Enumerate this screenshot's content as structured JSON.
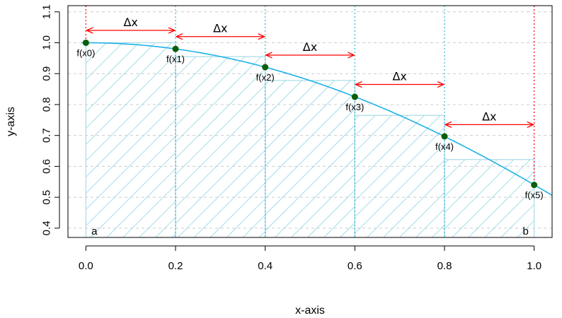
{
  "chart_data": {
    "type": "line",
    "title": "",
    "xlabel": "x-axis",
    "ylabel": "y-axis",
    "xlim": [
      -0.04,
      1.04
    ],
    "ylim": [
      0.37,
      1.12
    ],
    "x_ticks": [
      0.0,
      0.2,
      0.4,
      0.6,
      0.8,
      1.0
    ],
    "x_tick_labels": [
      "0.0",
      "0.2",
      "0.4",
      "0.6",
      "0.8",
      "1.0"
    ],
    "y_ticks": [
      0.4,
      0.5,
      0.6,
      0.7,
      0.8,
      0.9,
      1.0,
      1.1
    ],
    "y_tick_labels": [
      "0.4",
      "0.5",
      "0.6",
      "0.7",
      "0.8",
      "0.9",
      "1.0",
      "1.1"
    ],
    "grid": "horizontal dashed",
    "curve_color": "#1fb2e6",
    "point_color": "#0b5e0b",
    "hatch_color": "#a8dce9",
    "arrow_color": "#ff0000",
    "bound_line_color": "#ff0000",
    "partition_line_color": "#35b3dc",
    "curve": {
      "x": [
        0.0,
        0.1,
        0.2,
        0.3,
        0.4,
        0.5,
        0.6,
        0.7,
        0.8,
        0.9,
        1.0,
        1.04
      ],
      "y": [
        1.0,
        0.995,
        0.98,
        0.955,
        0.921,
        0.878,
        0.825,
        0.765,
        0.697,
        0.622,
        0.54,
        0.506
      ]
    },
    "points": [
      {
        "label": "f(x0)",
        "x": 0.0,
        "y": 1.0
      },
      {
        "label": "f(x1)",
        "x": 0.2,
        "y": 0.98
      },
      {
        "label": "f(x2)",
        "x": 0.4,
        "y": 0.921
      },
      {
        "label": "f(x3)",
        "x": 0.6,
        "y": 0.825
      },
      {
        "label": "f(x4)",
        "x": 0.8,
        "y": 0.697
      },
      {
        "label": "f(x5)",
        "x": 1.0,
        "y": 0.54
      }
    ],
    "rectangles": [
      {
        "x0": 0.0,
        "x1": 0.2,
        "height": 1.0
      },
      {
        "x0": 0.2,
        "x1": 0.4,
        "height": 0.955
      },
      {
        "x0": 0.4,
        "x1": 0.6,
        "height": 0.878
      },
      {
        "x0": 0.6,
        "x1": 0.8,
        "height": 0.765
      },
      {
        "x0": 0.8,
        "x1": 1.0,
        "height": 0.622
      }
    ],
    "intervals": [
      {
        "label": "Δx",
        "x0": 0.0,
        "x1": 0.2,
        "y": 1.04
      },
      {
        "label": "Δx",
        "x0": 0.2,
        "x1": 0.4,
        "y": 1.02
      },
      {
        "label": "Δx",
        "x0": 0.4,
        "x1": 0.6,
        "y": 0.96
      },
      {
        "label": "Δx",
        "x0": 0.6,
        "x1": 0.8,
        "y": 0.865
      },
      {
        "label": "Δx",
        "x0": 0.8,
        "x1": 1.0,
        "y": 0.735
      }
    ],
    "bound_labels": [
      {
        "label": "a",
        "x": 0.0
      },
      {
        "label": "b",
        "x": 1.0
      }
    ]
  }
}
